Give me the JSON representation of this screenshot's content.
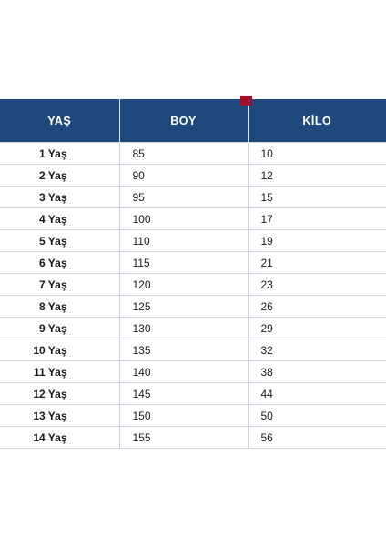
{
  "table": {
    "headers": [
      "YAŞ",
      "BOY",
      "KİLO"
    ],
    "rows": [
      [
        "1 Yaş",
        "85",
        "10"
      ],
      [
        "2 Yaş",
        "90",
        "12"
      ],
      [
        "3 Yaş",
        "95",
        "15"
      ],
      [
        "4 Yaş",
        "100",
        "17"
      ],
      [
        "5 Yaş",
        "110",
        "19"
      ],
      [
        "6 Yaş",
        "115",
        "21"
      ],
      [
        "7 Yaş",
        "120",
        "23"
      ],
      [
        "8 Yaş",
        "125",
        "26"
      ],
      [
        "9 Yaş",
        "130",
        "29"
      ],
      [
        "10 Yaş",
        "135",
        "32"
      ],
      [
        "11 Yaş",
        "140",
        "38"
      ],
      [
        "12 Yaş",
        "145",
        "44"
      ],
      [
        "13 Yaş",
        "150",
        "50"
      ],
      [
        "14 Yaş",
        "155",
        "56"
      ]
    ]
  },
  "colors": {
    "header_bg": "#1f497d",
    "header_text": "#ffffff",
    "marker": "#a0102a",
    "row_border": "#c9d1dc"
  }
}
